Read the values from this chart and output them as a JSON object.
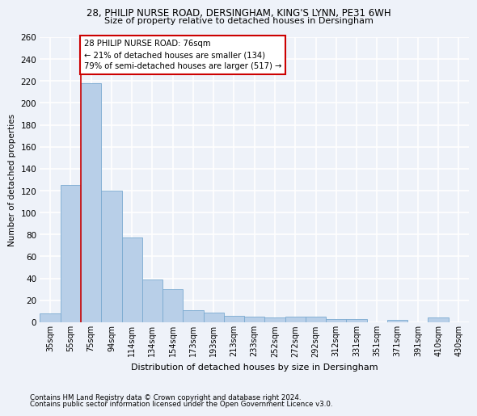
{
  "title1": "28, PHILIP NURSE ROAD, DERSINGHAM, KING'S LYNN, PE31 6WH",
  "title2": "Size of property relative to detached houses in Dersingham",
  "xlabel": "Distribution of detached houses by size in Dersingham",
  "ylabel": "Number of detached properties",
  "categories": [
    "35sqm",
    "55sqm",
    "75sqm",
    "94sqm",
    "114sqm",
    "134sqm",
    "154sqm",
    "173sqm",
    "193sqm",
    "213sqm",
    "233sqm",
    "252sqm",
    "272sqm",
    "292sqm",
    "312sqm",
    "331sqm",
    "351sqm",
    "371sqm",
    "391sqm",
    "410sqm",
    "430sqm"
  ],
  "values": [
    8,
    125,
    218,
    120,
    77,
    39,
    30,
    11,
    9,
    6,
    5,
    4,
    5,
    5,
    3,
    3,
    0,
    2,
    0,
    4,
    0
  ],
  "bar_color": "#b8cfe8",
  "bar_edge_color": "#7aaad0",
  "vline_x_index": 2,
  "vline_color": "#cc0000",
  "annotation_text": "28 PHILIP NURSE ROAD: 76sqm\n← 21% of detached houses are smaller (134)\n79% of semi-detached houses are larger (517) →",
  "annotation_box_color": "white",
  "annotation_box_edge": "#cc0000",
  "ylim": [
    0,
    260
  ],
  "yticks": [
    0,
    20,
    40,
    60,
    80,
    100,
    120,
    140,
    160,
    180,
    200,
    220,
    240,
    260
  ],
  "footnote1": "Contains HM Land Registry data © Crown copyright and database right 2024.",
  "footnote2": "Contains public sector information licensed under the Open Government Licence v3.0.",
  "background_color": "#eef2f9",
  "grid_color": "#ffffff"
}
